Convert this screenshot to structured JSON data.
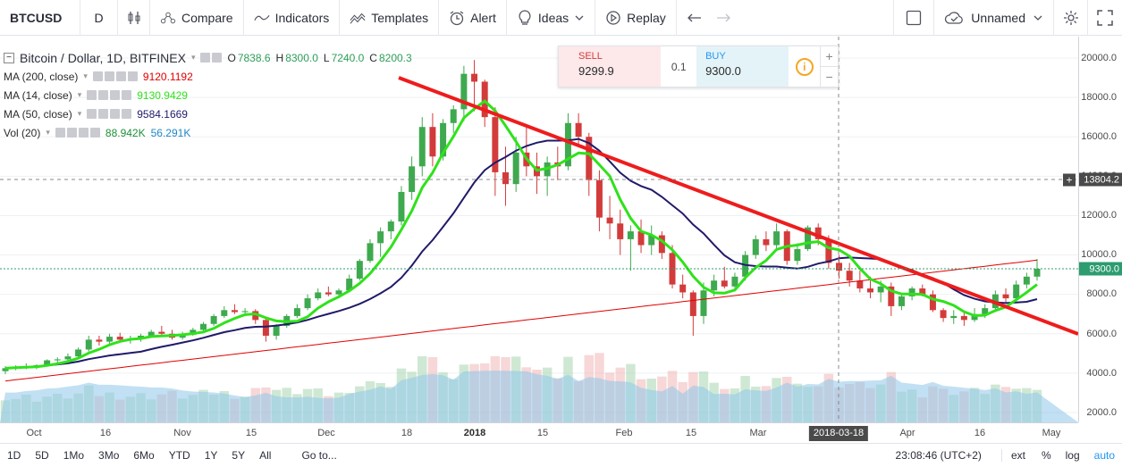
{
  "toolbar": {
    "symbol": "BTCUSD",
    "interval": "D",
    "compare": "Compare",
    "indicators": "Indicators",
    "templates": "Templates",
    "alert": "Alert",
    "ideas": "Ideas",
    "replay": "Replay",
    "layout_name": "Unnamed"
  },
  "legend": {
    "title": "Bitcoin / Dollar, 1D, BITFINEX",
    "ohlc": {
      "o_label": "O",
      "o": "7838.6",
      "h_label": "H",
      "h": "8300.0",
      "l_label": "L",
      "l": "7240.0",
      "c_label": "C",
      "c": "8200.3"
    },
    "indicators": [
      {
        "name": "MA (200, close)",
        "value": "9120.1192",
        "color": "#e00000"
      },
      {
        "name": "MA (14, close)",
        "value": "9130.9429",
        "color": "#2fe21a"
      },
      {
        "name": "MA (50, close)",
        "value": "9584.1669",
        "color": "#201a6a"
      }
    ],
    "volume": {
      "name": "Vol (20)",
      "value1": "88.942K",
      "value2": "56.291K",
      "color1": "#1f8f3a",
      "color2": "#1e88c7"
    }
  },
  "trade": {
    "sell_label": "SELL",
    "sell_price": "9299.9",
    "qty": "0.1",
    "buy_label": "BUY",
    "buy_price": "9300.0"
  },
  "price_axis": {
    "labels": [
      "20000.0",
      "18000.0",
      "16000.0",
      "14000.0",
      "12000.0",
      "10000.0",
      "8000.0",
      "6000.0",
      "4000.0",
      "2000.0"
    ],
    "crosshair_price": "13804.2",
    "last_price": "9300.0"
  },
  "time_axis": {
    "labels": [
      {
        "text": "Oct",
        "bold": false
      },
      {
        "text": "16",
        "bold": false
      },
      {
        "text": "Nov",
        "bold": false
      },
      {
        "text": "15",
        "bold": false
      },
      {
        "text": "Dec",
        "bold": false
      },
      {
        "text": "18",
        "bold": false
      },
      {
        "text": "2018",
        "bold": true
      },
      {
        "text": "15",
        "bold": false
      },
      {
        "text": "Feb",
        "bold": false
      },
      {
        "text": "15",
        "bold": false
      },
      {
        "text": "Mar",
        "bold": false
      },
      {
        "text": "Apr",
        "bold": false
      },
      {
        "text": "16",
        "bold": false
      },
      {
        "text": "May",
        "bold": false
      }
    ],
    "crosshair_date": "2018-03-18"
  },
  "bottom": {
    "ranges": [
      "1D",
      "5D",
      "1Mo",
      "3Mo",
      "6Mo",
      "YTD",
      "1Y",
      "5Y",
      "All"
    ],
    "goto": "Go to...",
    "clock": "23:08:46 (UTC+2)",
    "ext": "ext",
    "pct": "%",
    "log": "log",
    "auto": "auto"
  },
  "colors": {
    "up": "#3ea94f",
    "down": "#d33b3b",
    "trendline": "#ee1c1c",
    "ma14": "#2fe21a",
    "ma50": "#201a6a",
    "ma200": "#e00000",
    "volume": "#8fc7ea"
  },
  "chart_data": {
    "type": "candlestick",
    "ylim": [
      1500,
      20800
    ],
    "ohlc": [
      [
        4100,
        4350,
        3950,
        4250
      ],
      [
        4250,
        4400,
        4150,
        4300
      ],
      [
        4300,
        4500,
        4200,
        4350
      ],
      [
        4350,
        4450,
        4200,
        4400
      ],
      [
        4400,
        4700,
        4350,
        4650
      ],
      [
        4650,
        4800,
        4500,
        4700
      ],
      [
        4700,
        5000,
        4600,
        4850
      ],
      [
        4850,
        5300,
        4800,
        5200
      ],
      [
        5200,
        5900,
        5100,
        5700
      ],
      [
        5700,
        5900,
        5400,
        5600
      ],
      [
        5600,
        6000,
        5500,
        5850
      ],
      [
        5850,
        6050,
        5600,
        5700
      ],
      [
        5700,
        5900,
        5500,
        5750
      ],
      [
        5750,
        6000,
        5600,
        5900
      ],
      [
        5900,
        6200,
        5800,
        6100
      ],
      [
        6100,
        6400,
        5900,
        6000
      ],
      [
        6000,
        6200,
        5700,
        5800
      ],
      [
        5800,
        6100,
        5700,
        5950
      ],
      [
        5950,
        6300,
        5900,
        6200
      ],
      [
        6200,
        6600,
        6100,
        6500
      ],
      [
        6500,
        7000,
        6400,
        6900
      ],
      [
        6900,
        7400,
        6800,
        7200
      ],
      [
        7200,
        7500,
        7000,
        7100
      ],
      [
        7100,
        7300,
        6900,
        7150
      ],
      [
        7150,
        7250,
        6500,
        6700
      ],
      [
        6700,
        6800,
        5600,
        5900
      ],
      [
        5900,
        6500,
        5700,
        6400
      ],
      [
        6400,
        7000,
        6300,
        6900
      ],
      [
        6900,
        7500,
        6800,
        7300
      ],
      [
        7300,
        8000,
        7200,
        7800
      ],
      [
        7800,
        8300,
        7700,
        8100
      ],
      [
        8100,
        8400,
        7900,
        8000
      ],
      [
        8000,
        8300,
        7800,
        8200
      ],
      [
        8200,
        9000,
        8100,
        8800
      ],
      [
        8800,
        9800,
        8700,
        9700
      ],
      [
        9700,
        10800,
        9600,
        10600
      ],
      [
        10600,
        11400,
        9900,
        11200
      ],
      [
        11200,
        11800,
        10800,
        11700
      ],
      [
        11700,
        13500,
        11500,
        13200
      ],
      [
        13200,
        15000,
        12800,
        14500
      ],
      [
        14500,
        17000,
        14000,
        16500
      ],
      [
        16500,
        17200,
        14500,
        15000
      ],
      [
        15000,
        16900,
        14800,
        16700
      ],
      [
        16700,
        17600,
        16200,
        17400
      ],
      [
        17400,
        19600,
        16800,
        19200
      ],
      [
        19200,
        19900,
        17300,
        18800
      ],
      [
        18800,
        18900,
        16500,
        17000
      ],
      [
        17000,
        17500,
        13000,
        14200
      ],
      [
        14200,
        15500,
        12500,
        13600
      ],
      [
        13600,
        16000,
        13200,
        15200
      ],
      [
        15200,
        16500,
        14000,
        14500
      ],
      [
        14500,
        15200,
        13100,
        14000
      ],
      [
        14000,
        15000,
        13000,
        14700
      ],
      [
        14700,
        15500,
        13800,
        14500
      ],
      [
        14500,
        17200,
        14300,
        16700
      ],
      [
        16700,
        17200,
        15500,
        16000
      ],
      [
        16000,
        16200,
        13000,
        13800
      ],
      [
        13800,
        14300,
        11200,
        11900
      ],
      [
        11900,
        13000,
        10800,
        11600
      ],
      [
        11600,
        12300,
        10000,
        10800
      ],
      [
        10800,
        11500,
        9200,
        11200
      ],
      [
        11200,
        11800,
        10100,
        10500
      ],
      [
        10500,
        11500,
        10000,
        11000
      ],
      [
        11000,
        11200,
        9800,
        10100
      ],
      [
        10100,
        10500,
        8300,
        8500
      ],
      [
        8500,
        9000,
        7800,
        8100
      ],
      [
        8100,
        8200,
        5900,
        6900
      ],
      [
        6900,
        8600,
        6500,
        8200
      ],
      [
        8200,
        9000,
        7900,
        8700
      ],
      [
        8700,
        9400,
        8300,
        8400
      ],
      [
        8400,
        9100,
        8200,
        8900
      ],
      [
        8900,
        10200,
        8700,
        10000
      ],
      [
        10000,
        11000,
        9800,
        10800
      ],
      [
        10800,
        11200,
        10200,
        10500
      ],
      [
        10500,
        11600,
        10300,
        11200
      ],
      [
        11200,
        11300,
        9500,
        9700
      ],
      [
        9700,
        10600,
        9500,
        10300
      ],
      [
        10300,
        11500,
        10200,
        11400
      ],
      [
        11400,
        11600,
        10500,
        10800
      ],
      [
        10800,
        11000,
        9300,
        9600
      ],
      [
        9600,
        10000,
        8800,
        9200
      ],
      [
        9200,
        9600,
        8400,
        8700
      ],
      [
        8700,
        9200,
        8100,
        8300
      ],
      [
        8300,
        8900,
        7800,
        8100
      ],
      [
        8100,
        8700,
        7600,
        8400
      ],
      [
        8400,
        8600,
        6900,
        7400
      ],
      [
        7400,
        8000,
        7200,
        7900
      ],
      [
        7900,
        8400,
        7700,
        8300
      ],
      [
        8300,
        8500,
        7900,
        8000
      ],
      [
        8000,
        8200,
        7100,
        7200
      ],
      [
        7200,
        7300,
        6600,
        6800
      ],
      [
        6800,
        7200,
        6500,
        6900
      ],
      [
        6900,
        7100,
        6400,
        6700
      ],
      [
        6700,
        7300,
        6600,
        7000
      ],
      [
        7000,
        7500,
        6800,
        7300
      ],
      [
        7300,
        8200,
        7100,
        8000
      ],
      [
        8000,
        8300,
        7600,
        7800
      ],
      [
        7800,
        8700,
        7700,
        8500
      ],
      [
        8500,
        9100,
        8300,
        8900
      ],
      [
        8900,
        9800,
        8700,
        9300
      ]
    ]
  }
}
